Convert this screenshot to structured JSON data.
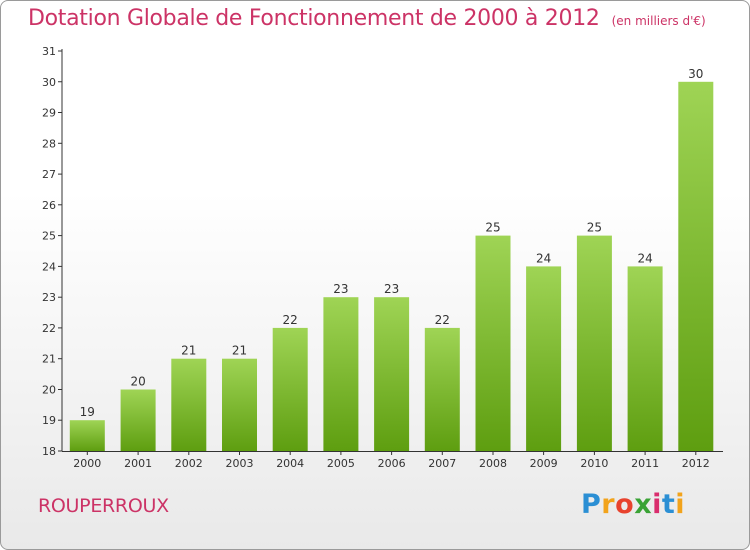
{
  "title": "Dotation Globale de Fonctionnement de 2000 à 2012",
  "unit_note": "(en milliers d'€)",
  "commune": "ROUPERROUX",
  "logo": {
    "letters": [
      "P",
      "r",
      "o",
      "x",
      "i",
      "t",
      "i"
    ],
    "colors": [
      "#2b8fd4",
      "#f2a31b",
      "#e8432e",
      "#3aa335",
      "#d92d6d",
      "#2b8fd4",
      "#f2a31b"
    ]
  },
  "colors": {
    "title": "#cc3366",
    "bar_top": "#9fd455",
    "bar_bottom": "#5e9e10",
    "axis": "#333333"
  },
  "chart_data": {
    "type": "bar",
    "title": "Dotation Globale de Fonctionnement de 2000 à 2012",
    "subtitle": "(en milliers d'€)",
    "categories": [
      "2000",
      "2001",
      "2002",
      "2003",
      "2004",
      "2005",
      "2006",
      "2007",
      "2008",
      "2009",
      "2010",
      "2011",
      "2012"
    ],
    "values": [
      19,
      20,
      21,
      21,
      22,
      23,
      23,
      22,
      25,
      24,
      25,
      24,
      30
    ],
    "data_labels": [
      "19",
      "20",
      "21",
      "21",
      "22",
      "23",
      "23",
      "22",
      "25",
      "24",
      "25",
      "24",
      "30"
    ],
    "ylim": [
      18,
      31
    ],
    "yticks": [
      18,
      19,
      20,
      21,
      22,
      23,
      24,
      25,
      26,
      27,
      28,
      29,
      30,
      31
    ],
    "xlabel": "",
    "ylabel": "",
    "grid": false,
    "legend": "none"
  }
}
